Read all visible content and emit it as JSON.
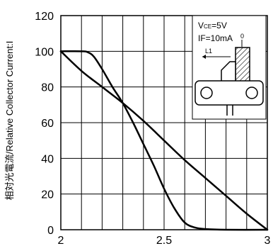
{
  "chart_data": {
    "type": "line",
    "title": "",
    "xlabel": "",
    "ylabel": "相対光電流/Relative Collector Current:I",
    "xlim": [
      2.0,
      3.0
    ],
    "ylim": [
      0,
      120
    ],
    "x_ticks": [
      2.0,
      2.5,
      3.0
    ],
    "x_tick_labels": [
      "2",
      "2.5",
      "3"
    ],
    "y_ticks": [
      0,
      20,
      40,
      60,
      80,
      100,
      120
    ],
    "y_tick_labels": [
      "0",
      "20",
      "40",
      "60",
      "80",
      "100",
      "120"
    ],
    "grid": true,
    "series": [
      {
        "values": [
          [
            2.0,
            100
          ],
          [
            2.1,
            100
          ],
          [
            2.13,
            99.5
          ],
          [
            2.16,
            97
          ],
          [
            2.2,
            90
          ],
          [
            2.25,
            80
          ],
          [
            2.3,
            71
          ],
          [
            2.35,
            60
          ],
          [
            2.4,
            48
          ],
          [
            2.45,
            36
          ],
          [
            2.5,
            23
          ],
          [
            2.55,
            12
          ],
          [
            2.6,
            4
          ],
          [
            2.65,
            1.2
          ],
          [
            2.7,
            0.4
          ],
          [
            2.8,
            0
          ],
          [
            3.0,
            0
          ]
        ]
      },
      {
        "values": [
          [
            2.0,
            100
          ],
          [
            2.1,
            89
          ],
          [
            2.2,
            80
          ],
          [
            2.3,
            71
          ],
          [
            2.4,
            61
          ],
          [
            2.5,
            50
          ],
          [
            2.6,
            39
          ],
          [
            2.7,
            29
          ],
          [
            2.8,
            19
          ],
          [
            2.9,
            9
          ],
          [
            3.0,
            0
          ]
        ]
      }
    ],
    "inset": {
      "lines": [
        "VCE=5V",
        "IF=10mA"
      ],
      "vce_main": "V",
      "vce_sub": "CE",
      "vce_rest": "=5V",
      "if_text": "IF=10mA",
      "zero_label": "0",
      "l1_label": "L1"
    }
  }
}
